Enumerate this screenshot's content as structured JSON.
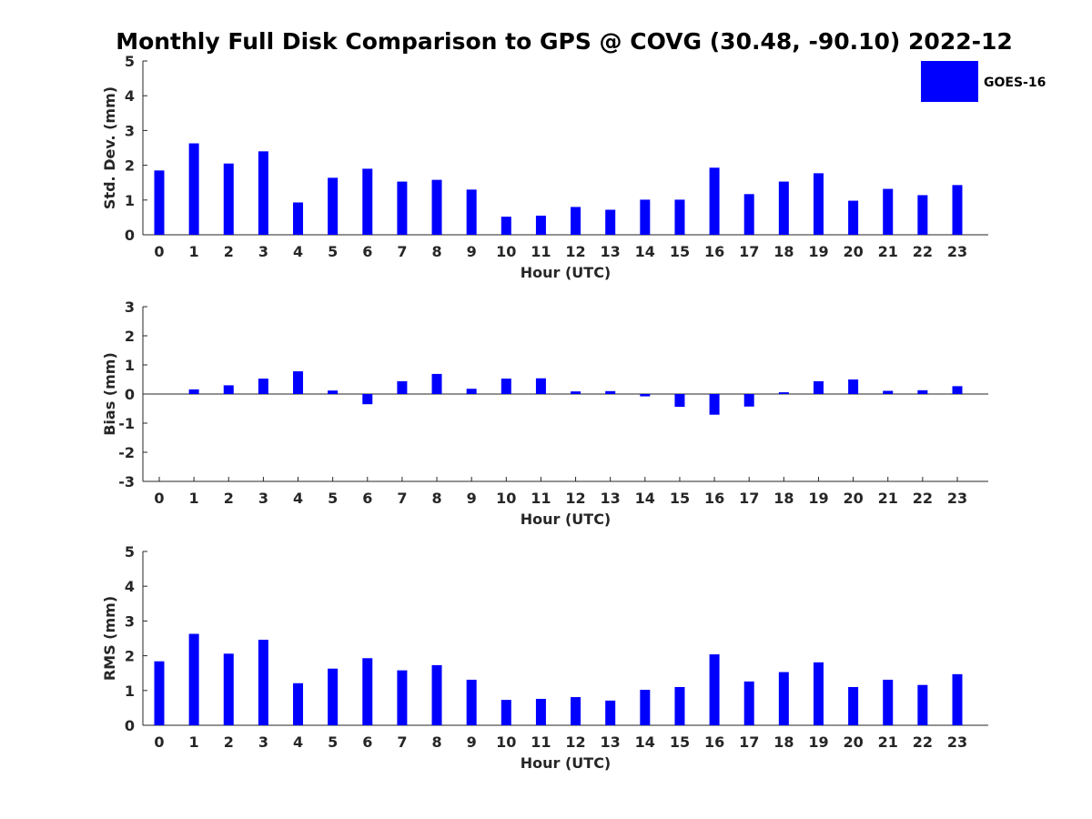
{
  "figure": {
    "title": "Monthly Full Disk Comparison to GPS @ COVG (30.48, -90.10) 2022-12"
  },
  "legend": {
    "label": "GOES-16",
    "color": "#0000ff",
    "placement": "top-right"
  },
  "chart_data": [
    {
      "type": "bar",
      "name": "std-dev",
      "xlabel": "Hour (UTC)",
      "ylabel": "Std. Dev. (mm)",
      "ylim": [
        0,
        5
      ],
      "yticks": [
        0,
        1,
        2,
        3,
        4,
        5
      ],
      "categories": [
        "0",
        "1",
        "2",
        "3",
        "4",
        "5",
        "6",
        "7",
        "8",
        "9",
        "10",
        "11",
        "12",
        "13",
        "14",
        "15",
        "16",
        "17",
        "18",
        "19",
        "20",
        "21",
        "22",
        "23"
      ],
      "series": [
        {
          "name": "GOES-16",
          "color": "#0000ff",
          "values": [
            1.85,
            2.63,
            2.05,
            2.4,
            0.93,
            1.64,
            1.9,
            1.53,
            1.58,
            1.3,
            0.52,
            0.55,
            0.8,
            0.72,
            1.01,
            1.01,
            1.93,
            1.17,
            1.53,
            1.77,
            0.98,
            1.32,
            1.14,
            1.43
          ]
        }
      ],
      "grid": false
    },
    {
      "type": "bar",
      "name": "bias",
      "xlabel": "Hour (UTC)",
      "ylabel": "Bias (mm)",
      "ylim": [
        -3,
        3
      ],
      "yticks": [
        -3,
        -2,
        -1,
        0,
        1,
        2,
        3
      ],
      "categories": [
        "0",
        "1",
        "2",
        "3",
        "4",
        "5",
        "6",
        "7",
        "8",
        "9",
        "10",
        "11",
        "12",
        "13",
        "14",
        "15",
        "16",
        "17",
        "18",
        "19",
        "20",
        "21",
        "22",
        "23"
      ],
      "series": [
        {
          "name": "GOES-16",
          "color": "#0000ff",
          "values": [
            0.0,
            0.16,
            0.3,
            0.53,
            0.78,
            0.12,
            -0.35,
            0.44,
            0.69,
            0.18,
            0.53,
            0.54,
            0.09,
            0.1,
            -0.08,
            -0.44,
            -0.71,
            -0.43,
            0.06,
            0.44,
            0.5,
            0.11,
            0.13,
            0.27
          ]
        }
      ],
      "grid": false
    },
    {
      "type": "bar",
      "name": "rms",
      "xlabel": "Hour (UTC)",
      "ylabel": "RMS (mm)",
      "ylim": [
        0,
        5
      ],
      "yticks": [
        0,
        1,
        2,
        3,
        4,
        5
      ],
      "categories": [
        "0",
        "1",
        "2",
        "3",
        "4",
        "5",
        "6",
        "7",
        "8",
        "9",
        "10",
        "11",
        "12",
        "13",
        "14",
        "15",
        "16",
        "17",
        "18",
        "19",
        "20",
        "21",
        "22",
        "23"
      ],
      "series": [
        {
          "name": "GOES-16",
          "color": "#0000ff",
          "values": [
            1.84,
            2.63,
            2.06,
            2.46,
            1.21,
            1.63,
            1.93,
            1.58,
            1.73,
            1.31,
            0.73,
            0.76,
            0.81,
            0.71,
            1.02,
            1.1,
            2.04,
            1.26,
            1.53,
            1.81,
            1.1,
            1.31,
            1.16,
            1.47
          ]
        }
      ],
      "grid": false
    }
  ]
}
